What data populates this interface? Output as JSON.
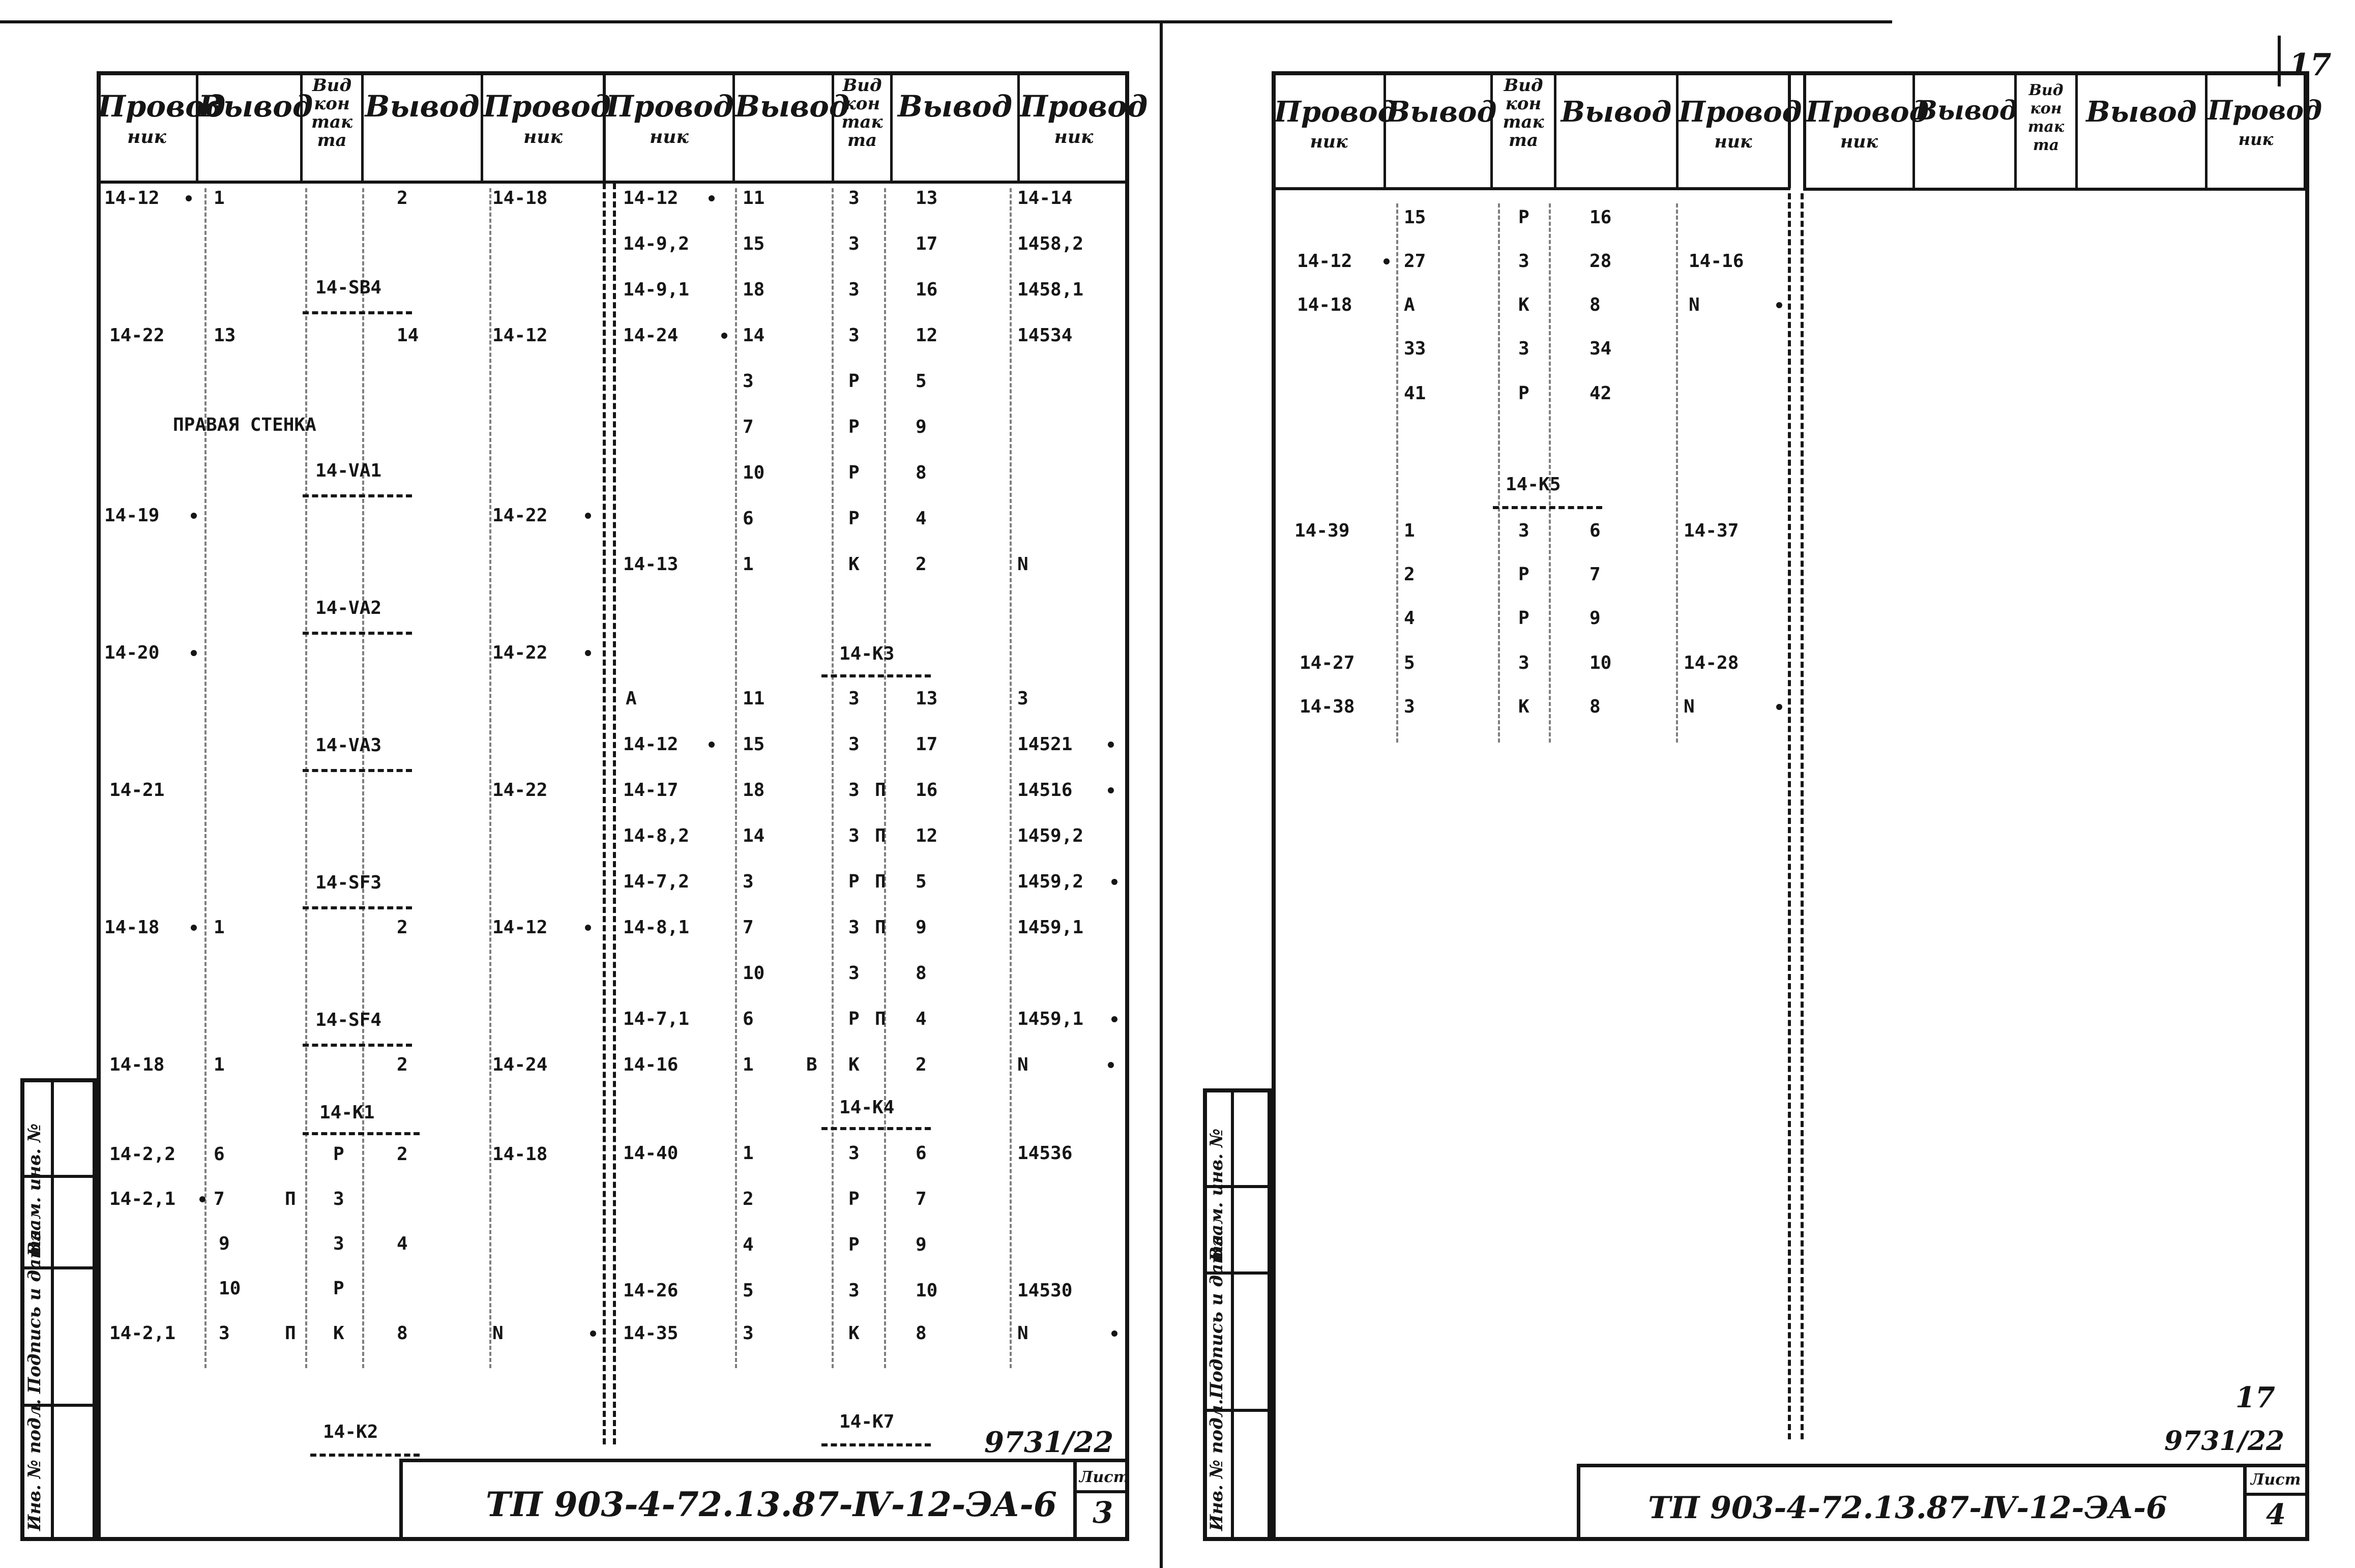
{
  "header": {
    "provod": "Провод",
    "nik": "ник",
    "vyvod": "Вывод",
    "vid": "Вид",
    "kon": "кон",
    "tak": "так",
    "ta": "та"
  },
  "side_labels": [
    "Инв. № подл.",
    "Подпись и дата",
    "Взам. инв. №"
  ],
  "page1": {
    "device_labels": [
      "14-SB4",
      "ПРАВАЯ СТЕНКА",
      "14-VA1",
      "14-VA2",
      "14-VA3",
      "14-SF3",
      "14-SF4",
      "14-K1",
      "14-K2",
      "14-K3",
      "14-K4",
      "14-K7"
    ],
    "left_rows": [
      [
        "14-12",
        "1",
        "2",
        "14-18"
      ],
      [
        "14-22",
        "13",
        "14",
        "14-12"
      ],
      [
        "14-19",
        "",
        "",
        "14-22"
      ],
      [
        "14-20",
        "",
        "",
        "14-22"
      ],
      [
        "14-21",
        "",
        "",
        "14-22"
      ],
      [
        "14-18",
        "1",
        "2",
        "14-12"
      ],
      [
        "14-18",
        "1",
        "2",
        "14-24"
      ],
      [
        "14-2,2",
        "6",
        "2",
        "14-18"
      ],
      [
        "14-2,1",
        "7",
        "",
        ""
      ],
      [
        "",
        "9",
        "4",
        ""
      ],
      [
        "",
        "10",
        "",
        ""
      ],
      [
        "14-2,1",
        "3",
        "8",
        "N"
      ]
    ],
    "left_contact_types": [
      "Р",
      "П",
      "3",
      "3",
      "Р",
      "П",
      "К"
    ],
    "right_rows": [
      [
        "14-12",
        "11",
        "3",
        "13",
        "14-14"
      ],
      [
        "14-9,2",
        "15",
        "3",
        "17",
        "1458,2"
      ],
      [
        "14-9,1",
        "18",
        "3",
        "16",
        "1458,1"
      ],
      [
        "14-24",
        "14",
        "3",
        "12",
        "14534"
      ],
      [
        "",
        "3",
        "Р",
        "5",
        ""
      ],
      [
        "",
        "7",
        "Р",
        "9",
        ""
      ],
      [
        "",
        "10",
        "Р",
        "8",
        ""
      ],
      [
        "",
        "6",
        "Р",
        "4",
        ""
      ],
      [
        "14-13",
        "1",
        "К",
        "2",
        "N"
      ],
      [
        "A",
        "11",
        "3",
        "13",
        "3"
      ],
      [
        "14-12",
        "15",
        "3",
        "17",
        "14521"
      ],
      [
        "14-17",
        "18",
        "3",
        "16",
        "14516"
      ],
      [
        "14-8,2",
        "14",
        "3",
        "12",
        "1459,2"
      ],
      [
        "14-7,2",
        "3",
        "Р",
        "5",
        "1459,2"
      ],
      [
        "14-8,1",
        "7",
        "3",
        "9",
        "1459,1"
      ],
      [
        "",
        "10",
        "3",
        "8",
        ""
      ],
      [
        "14-7,1",
        "6",
        "Р",
        "4",
        "1459,1"
      ],
      [
        "14-16",
        "1",
        "К",
        "2",
        "N"
      ],
      [
        "14-40",
        "1",
        "3",
        "6",
        "14536"
      ],
      [
        "",
        "2",
        "Р",
        "7",
        ""
      ],
      [
        "",
        "4",
        "Р",
        "9",
        ""
      ],
      [
        "14-26",
        "5",
        "3",
        "10",
        "14530"
      ],
      [
        "14-35",
        "3",
        "К",
        "8",
        "N"
      ]
    ],
    "p_marks": [
      "П",
      "П",
      "П",
      "П",
      "П",
      "П",
      "В"
    ],
    "sheet_code": "9731/22",
    "doc_number": "ТП 903-4-72.13.87-Ⅳ-12-ЭА-6",
    "list_label": "Лист",
    "list_number": "3"
  },
  "page2": {
    "corner_number": "17",
    "device_labels": [
      "14-K5"
    ],
    "rows": [
      [
        "",
        "15",
        "Р",
        "16",
        ""
      ],
      [
        "14-12",
        "27",
        "3",
        "28",
        "14-16"
      ],
      [
        "14-18",
        "А",
        "К",
        "8",
        "N"
      ],
      [
        "",
        "33",
        "3",
        "34",
        ""
      ],
      [
        "",
        "41",
        "Р",
        "42",
        ""
      ],
      [
        "14-39",
        "1",
        "3",
        "6",
        "14-37"
      ],
      [
        "",
        "2",
        "Р",
        "7",
        ""
      ],
      [
        "",
        "4",
        "Р",
        "9",
        ""
      ],
      [
        "14-27",
        "5",
        "3",
        "10",
        "14-28"
      ],
      [
        "14-38",
        "3",
        "К",
        "8",
        "N"
      ]
    ],
    "handwritten_number": "17",
    "sheet_code": "9731/22",
    "doc_number": "ТП 903-4-72.13.87-Ⅳ-12-ЭА-6",
    "list_label": "Лист",
    "list_number": "4"
  }
}
